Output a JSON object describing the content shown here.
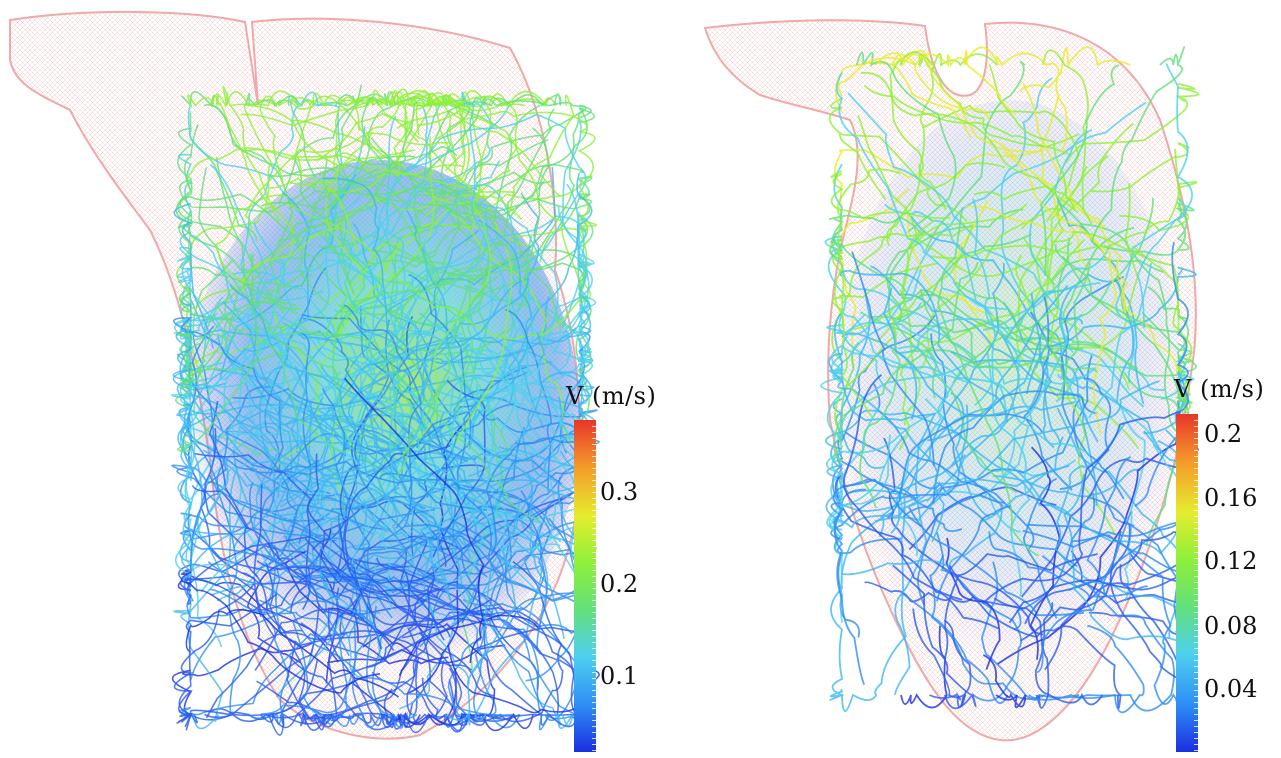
{
  "left": {
    "colorbar_title": "V (m/s)",
    "ticks": [
      "0.3",
      "0.2",
      "0.1"
    ]
  },
  "right": {
    "colorbar_title": "V (m/s)",
    "ticks": [
      "0.2",
      "0.16",
      "0.12",
      "0.08",
      "0.04"
    ]
  },
  "colormap": [
    "#1a2fe0",
    "#2e8df5",
    "#4fd0ee",
    "#63e07a",
    "#8ef03a",
    "#e6ec2e",
    "#f49a2a",
    "#e8352a"
  ]
}
